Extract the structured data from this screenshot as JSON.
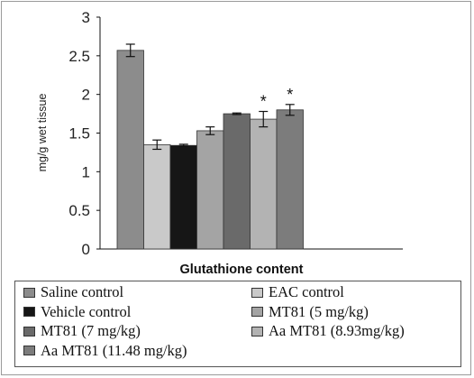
{
  "chart_data": {
    "type": "bar",
    "title": "",
    "xlabel": "Glutathione content",
    "ylabel": "mg/g wet tissue",
    "ylim": [
      0,
      3
    ],
    "yticks": [
      "0",
      "0.5",
      "1",
      "1.5",
      "2",
      "2.5",
      "3"
    ],
    "grid": false,
    "legend_position": "bottom",
    "series": [
      {
        "name": "Saline control",
        "value": 2.57,
        "error": 0.08,
        "color": "#8c8c8c",
        "marker": ""
      },
      {
        "name": "EAC control",
        "value": 1.35,
        "error": 0.06,
        "color": "#c9c9c9",
        "marker": ""
      },
      {
        "name": "Vehicle control",
        "value": 1.34,
        "error": 0.015,
        "color": "#161616",
        "marker": ""
      },
      {
        "name": "MT81 (5 mg/kg)",
        "value": 1.53,
        "error": 0.05,
        "color": "#a4a4a4",
        "marker": ""
      },
      {
        "name": "MT81 (7 mg/kg)",
        "value": 1.75,
        "error": 0.01,
        "color": "#6a6a6a",
        "marker": ""
      },
      {
        "name": "Aa MT81 (8.93mg/kg)",
        "value": 1.68,
        "error": 0.1,
        "color": "#b3b3b3",
        "marker": "*"
      },
      {
        "name": "Aa MT81 (11.48 mg/kg)",
        "value": 1.8,
        "error": 0.07,
        "color": "#7c7c7c",
        "marker": "*"
      }
    ]
  }
}
